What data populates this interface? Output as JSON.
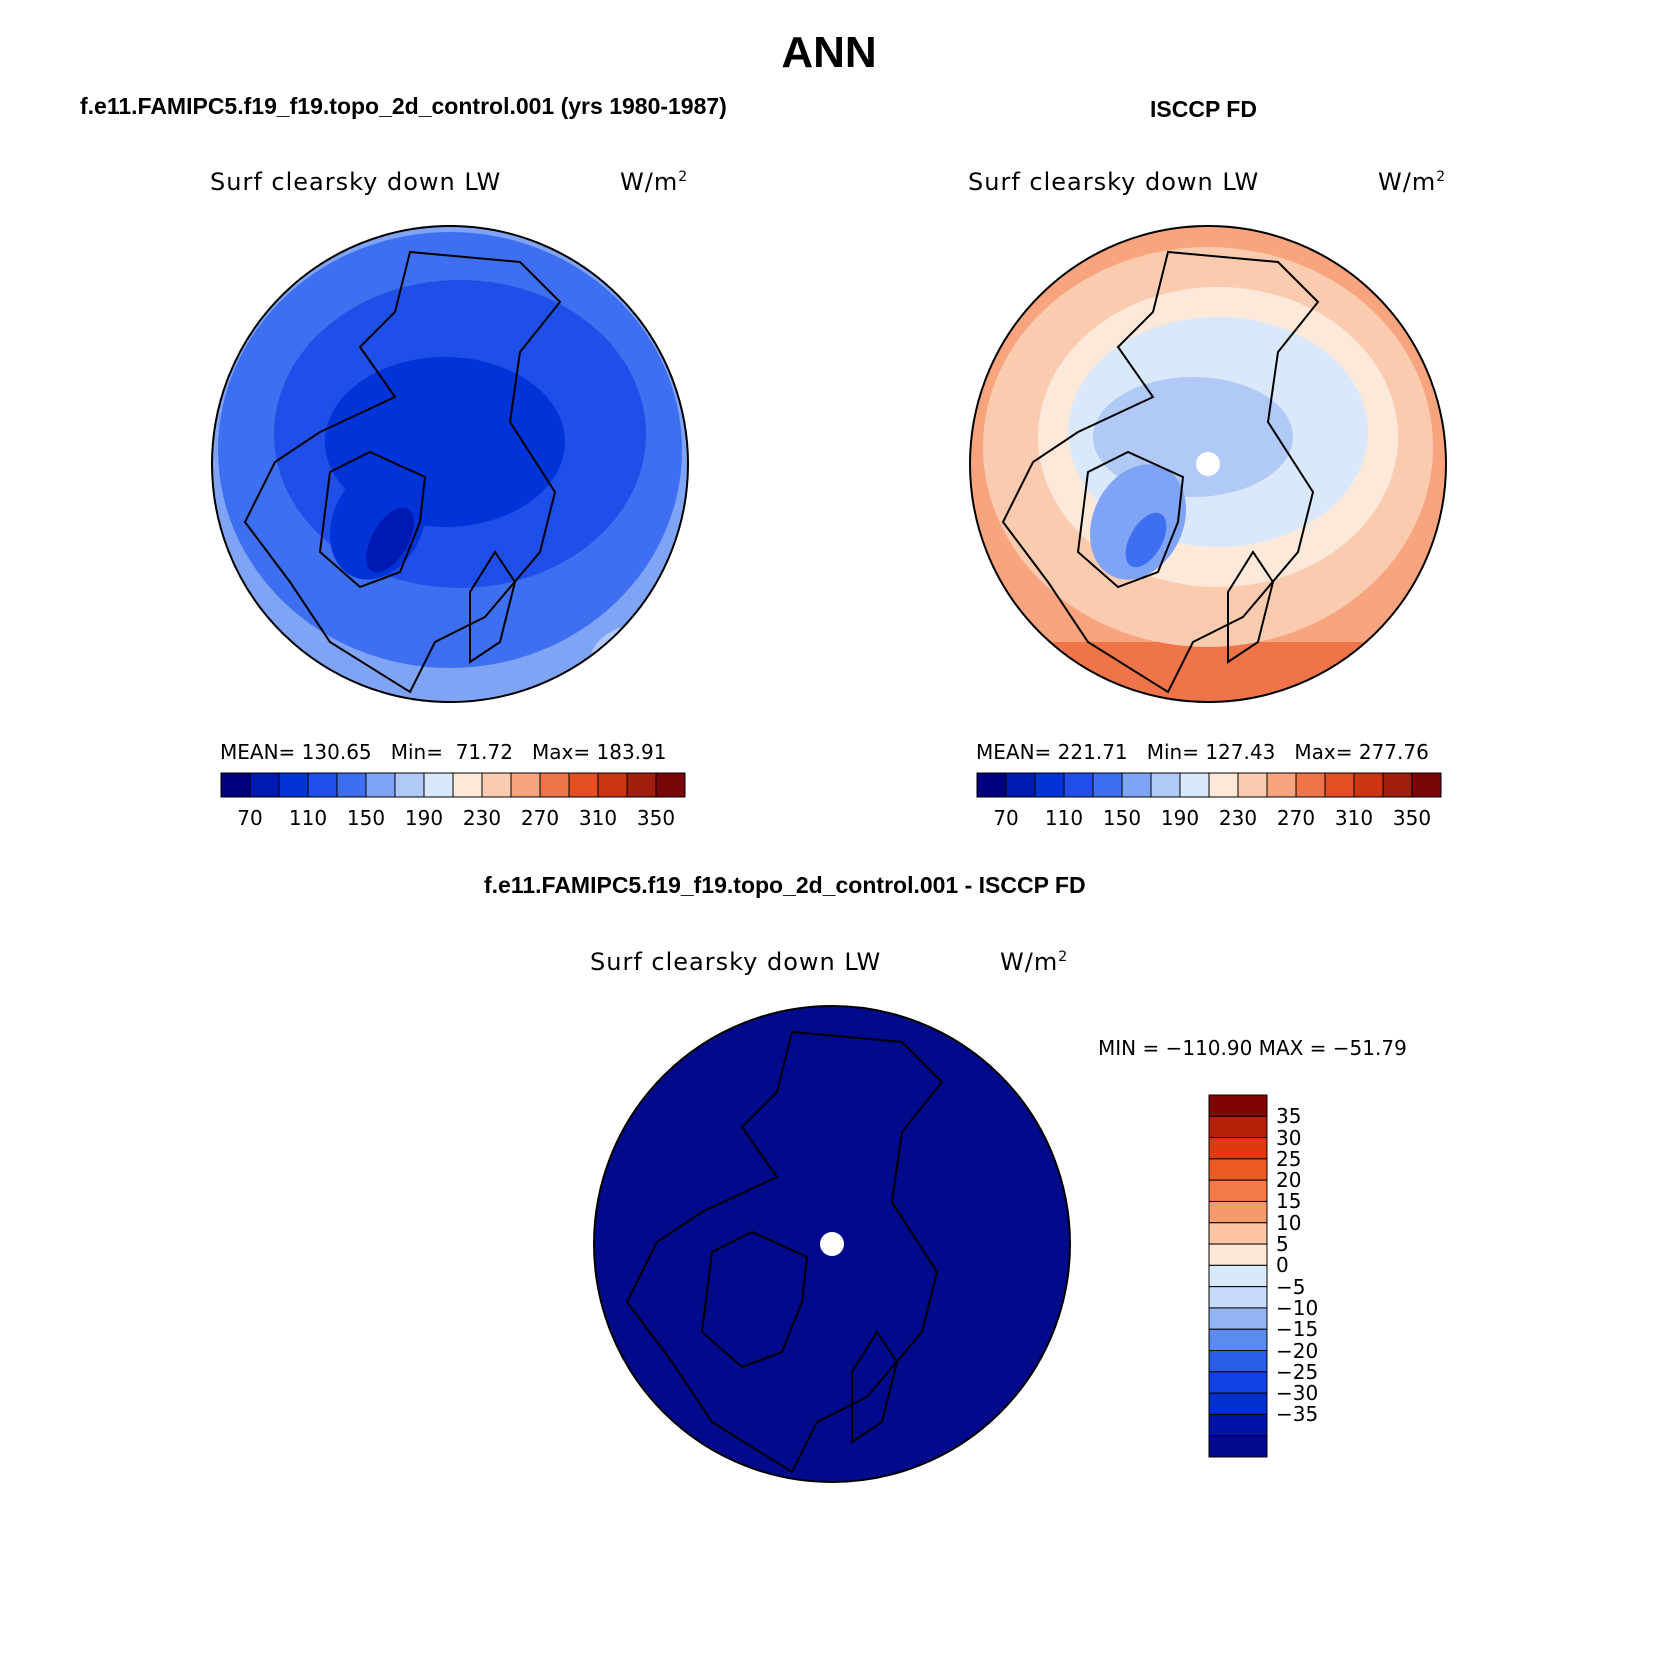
{
  "title": "ANN",
  "left_panel": {
    "case_title": "f.e11.FAMIPC5.f19_f19.topo_2d_control.001 (yrs 1980-1987)",
    "var_label": "Surf clearsky down LW",
    "units_base": "W/m",
    "units_exp": "2",
    "mean_label": "MEAN=",
    "mean_value": "130.65",
    "min_label": "Min=",
    "min_value": "71.72",
    "max_label": "Max=",
    "max_value": "183.91"
  },
  "right_panel": {
    "case_title": "ISCCP FD",
    "var_label": "Surf clearsky down LW",
    "units_base": "W/m",
    "units_exp": "2",
    "mean_label": "MEAN=",
    "mean_value": "221.71",
    "min_label": "Min=",
    "min_value": "127.43",
    "max_label": "Max=",
    "max_value": "277.76"
  },
  "diff_panel": {
    "case_title": "f.e11.FAMIPC5.f19_f19.topo_2d_control.001 - ISCCP FD",
    "var_label": "Surf clearsky down LW",
    "units_base": "W/m",
    "units_exp": "2",
    "minmax_text": "MIN = −110.90 MAX = −51.79"
  },
  "colors": {
    "abs_scale": [
      "#00007f",
      "#0019b2",
      "#0033d8",
      "#1f4fe8",
      "#3e6ff0",
      "#7fa3f5",
      "#b1c9f7",
      "#d9e8fa",
      "#fde9d9",
      "#fbcbb0",
      "#f7a47f",
      "#f0744a",
      "#e44e20",
      "#cc3412",
      "#a01e0c",
      "#7a0506"
    ],
    "diff_scale": [
      "#000a8a",
      "#0012a8",
      "#002fd0",
      "#1242e6",
      "#2a5de8",
      "#5b8ced",
      "#92b4f3",
      "#c5daf8",
      "#d8e9fa",
      "#fde8d5",
      "#fbc4a4",
      "#f79a6b",
      "#f47a48",
      "#ee5a24",
      "#dd3a0e",
      "#b32208",
      "#7f0404"
    ]
  },
  "chart_data": [
    {
      "type": "heatmap",
      "title": "f.e11.FAMIPC5.f19_f19.topo_2d_control.001 (yrs 1980-1987)",
      "variable": "Surf clearsky down LW",
      "units": "W/m2",
      "projection": "north polar stereographic",
      "stats": {
        "mean": 130.65,
        "min": 71.72,
        "max": 183.91
      },
      "colorbar_levels": [
        70,
        110,
        150,
        190,
        230,
        270,
        310,
        350
      ],
      "colorbar_ticks": [
        "70",
        "110",
        "150",
        "190",
        "230",
        "270",
        "310",
        "350"
      ]
    },
    {
      "type": "heatmap",
      "title": "ISCCP FD",
      "variable": "Surf clearsky down LW",
      "units": "W/m2",
      "projection": "north polar stereographic",
      "stats": {
        "mean": 221.71,
        "min": 127.43,
        "max": 277.76
      },
      "colorbar_levels": [
        70,
        110,
        150,
        190,
        230,
        270,
        310,
        350
      ],
      "colorbar_ticks": [
        "70",
        "110",
        "150",
        "190",
        "230",
        "270",
        "310",
        "350"
      ]
    },
    {
      "type": "heatmap",
      "title": "f.e11.FAMIPC5.f19_f19.topo_2d_control.001 - ISCCP FD",
      "variable": "Surf clearsky down LW",
      "units": "W/m2",
      "projection": "north polar stereographic",
      "stats": {
        "min": -110.9,
        "max": -51.79
      },
      "colorbar_levels": [
        35,
        30,
        25,
        20,
        15,
        10,
        5,
        0,
        -5,
        -10,
        -15,
        -20,
        -25,
        -30,
        -35
      ],
      "colorbar_ticks": [
        "35",
        "30",
        "25",
        "20",
        "15",
        "10",
        "5",
        "0",
        "−5",
        "−10",
        "−15",
        "−20",
        "−25",
        "−30",
        "−35"
      ]
    }
  ]
}
